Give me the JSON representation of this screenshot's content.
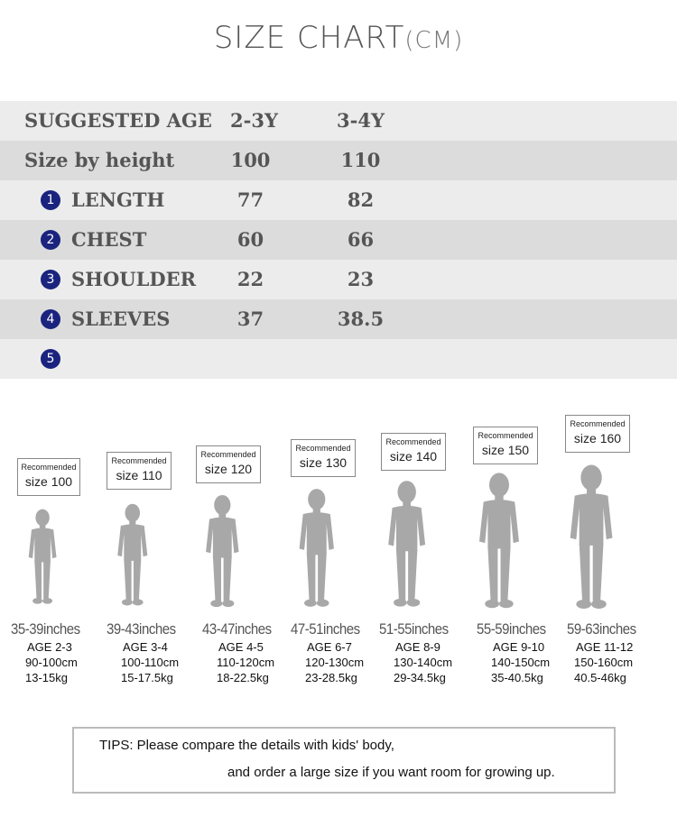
{
  "title": {
    "main": "SIZE CHART",
    "unit": "(CM)"
  },
  "table": {
    "header": {
      "label": "SUGGESTED AGE",
      "values": [
        "2-3Y",
        "3-4Y"
      ]
    },
    "height_row": {
      "label": "Size by height",
      "values": [
        "100",
        "110"
      ]
    },
    "rows": [
      {
        "num": "1",
        "label": "LENGTH",
        "values": [
          "77",
          "82"
        ]
      },
      {
        "num": "2",
        "label": "CHEST",
        "values": [
          "60",
          "66"
        ]
      },
      {
        "num": "3",
        "label": "SHOULDER",
        "values": [
          "22",
          "23"
        ]
      },
      {
        "num": "4",
        "label": "SLEEVES",
        "values": [
          "37",
          "38.5"
        ]
      },
      {
        "num": "5",
        "label": "",
        "values": [
          "",
          ""
        ]
      }
    ]
  },
  "kids": [
    {
      "rec": "Recommended",
      "size": "size 100",
      "inches": "35-39inches",
      "age": "AGE 2-3",
      "cm": "90-100cm",
      "kg": "13-15kg"
    },
    {
      "rec": "Recommended",
      "size": "size 110",
      "inches": "39-43inches",
      "age": "AGE 3-4",
      "cm": "100-110cm",
      "kg": "15-17.5kg"
    },
    {
      "rec": "Recommended",
      "size": "size 120",
      "inches": "43-47inches",
      "age": "AGE 4-5",
      "cm": "110-120cm",
      "kg": "18-22.5kg"
    },
    {
      "rec": "Recommended",
      "size": "size 130",
      "inches": "47-51inches",
      "age": "AGE 6-7",
      "cm": "120-130cm",
      "kg": "23-28.5kg"
    },
    {
      "rec": "Recommended",
      "size": "size 140",
      "inches": "51-55inches",
      "age": "AGE 8-9",
      "cm": "130-140cm",
      "kg": "29-34.5kg"
    },
    {
      "rec": "Recommended",
      "size": "size 150",
      "inches": "55-59inches",
      "age": "AGE 9-10",
      "cm": "140-150cm",
      "kg": "35-40.5kg"
    },
    {
      "rec": "Recommended",
      "size": "size 160",
      "inches": "59-63inches",
      "age": "AGE 11-12",
      "cm": "150-160cm",
      "kg": "40.5-46kg"
    }
  ],
  "tips": {
    "line1": "TIPS: Please compare the details with kids' body,",
    "line2": "and order a large size if you want room for growing up."
  },
  "colors": {
    "number_badge": "#1a237e",
    "row_dark": "#dcdcdc",
    "row_light": "#ececec",
    "silhouette": "#a8a8a8"
  }
}
